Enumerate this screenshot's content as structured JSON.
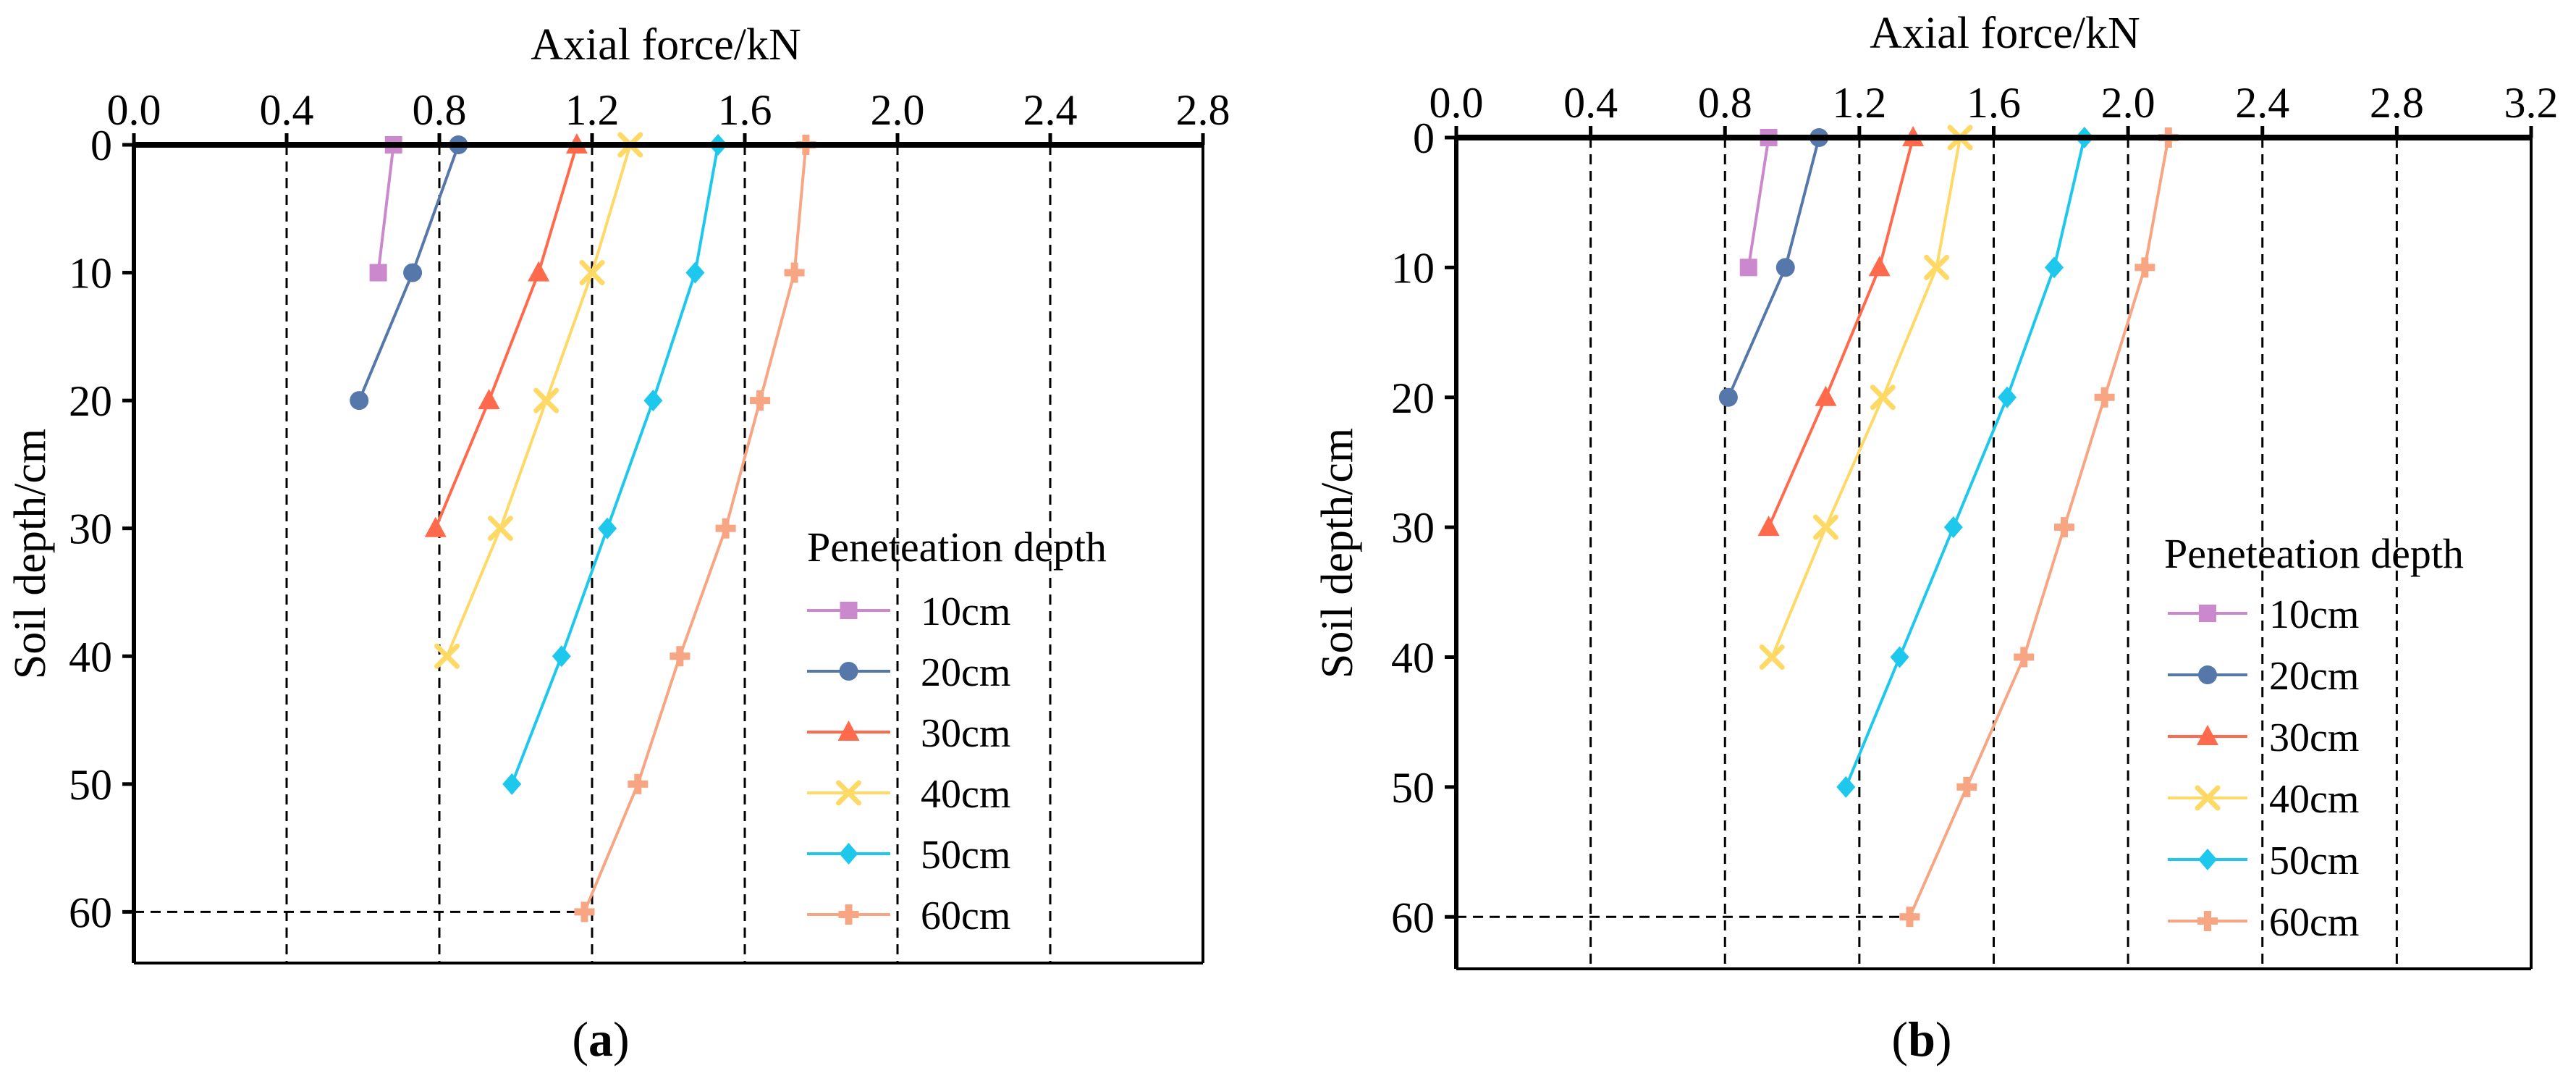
{
  "colors": {
    "10cm": "#cc88cc",
    "20cm": "#5577aa",
    "30cm": "#ff6a4d",
    "40cm": "#ffd966",
    "50cm": "#1ec8ec",
    "60cm": "#f7a582"
  },
  "chart_data": [
    {
      "type": "line",
      "panel_label": "a",
      "xlabel": "Axial force/kN",
      "ylabel": "Soil depth/cm",
      "xlim": [
        0,
        2.8
      ],
      "ylim": [
        0,
        64
      ],
      "x_axis_position": "top",
      "y_axis_inverted": true,
      "xticks": [
        "0.0",
        "0.4",
        "0.8",
        "1.2",
        "1.6",
        "2.0",
        "2.4",
        "2.8"
      ],
      "yticks": [
        "0",
        "10",
        "20",
        "30",
        "40",
        "50",
        "60"
      ],
      "vgrid": [
        0.4,
        0.8,
        1.2,
        1.6,
        2.0,
        2.4
      ],
      "grid": "dashed vertical",
      "reference_line": {
        "depth": 60,
        "x_end": 1.18
      },
      "legend_title": "Peneteation depth",
      "legend_position": "right",
      "series": [
        {
          "name": "10cm",
          "marker": "square",
          "depth": [
            0,
            10
          ],
          "force": [
            0.68,
            0.64
          ]
        },
        {
          "name": "20cm",
          "marker": "circle",
          "depth": [
            0,
            10,
            20
          ],
          "force": [
            0.85,
            0.73,
            0.59
          ]
        },
        {
          "name": "30cm",
          "marker": "triangle",
          "depth": [
            0,
            10,
            20,
            30
          ],
          "force": [
            1.16,
            1.06,
            0.93,
            0.79
          ]
        },
        {
          "name": "40cm",
          "marker": "x",
          "depth": [
            0,
            10,
            20,
            30,
            40
          ],
          "force": [
            1.3,
            1.2,
            1.08,
            0.96,
            0.82
          ]
        },
        {
          "name": "50cm",
          "marker": "diamond",
          "depth": [
            0,
            10,
            20,
            30,
            40,
            50
          ],
          "force": [
            1.53,
            1.47,
            1.36,
            1.24,
            1.12,
            0.99
          ]
        },
        {
          "name": "60cm",
          "marker": "plus",
          "depth": [
            0,
            10,
            20,
            30,
            40,
            50,
            60
          ],
          "force": [
            1.76,
            1.73,
            1.64,
            1.55,
            1.43,
            1.32,
            1.18
          ]
        }
      ]
    },
    {
      "type": "line",
      "panel_label": "b",
      "xlabel": "Axial force/kN",
      "ylabel": "Soil depth/cm",
      "xlim": [
        0,
        3.2
      ],
      "ylim": [
        0,
        64
      ],
      "x_axis_position": "top",
      "y_axis_inverted": true,
      "xticks": [
        "0.0",
        "0.4",
        "0.8",
        "1.2",
        "1.6",
        "2.0",
        "2.4",
        "2.8",
        "3.2"
      ],
      "yticks": [
        "0",
        "10",
        "20",
        "30",
        "40",
        "50",
        "60"
      ],
      "vgrid": [
        0.4,
        0.8,
        1.2,
        1.6,
        2.0,
        2.4,
        2.8
      ],
      "grid": "dashed vertical",
      "reference_line": {
        "depth": 60,
        "x_end": 1.35
      },
      "legend_title": "Peneteation depth",
      "legend_position": "right",
      "series": [
        {
          "name": "10cm",
          "marker": "square",
          "depth": [
            0,
            10
          ],
          "force": [
            0.93,
            0.87
          ]
        },
        {
          "name": "20cm",
          "marker": "circle",
          "depth": [
            0,
            10,
            20
          ],
          "force": [
            1.08,
            0.98,
            0.81
          ]
        },
        {
          "name": "30cm",
          "marker": "triangle",
          "depth": [
            0,
            10,
            20,
            30
          ],
          "force": [
            1.36,
            1.26,
            1.1,
            0.93
          ]
        },
        {
          "name": "40cm",
          "marker": "x",
          "depth": [
            0,
            10,
            20,
            30,
            40
          ],
          "force": [
            1.5,
            1.43,
            1.27,
            1.1,
            0.94
          ]
        },
        {
          "name": "50cm",
          "marker": "diamond",
          "depth": [
            0,
            10,
            20,
            30,
            40,
            50
          ],
          "force": [
            1.87,
            1.78,
            1.64,
            1.48,
            1.32,
            1.16
          ]
        },
        {
          "name": "60cm",
          "marker": "plus",
          "depth": [
            0,
            10,
            20,
            30,
            40,
            50,
            60
          ],
          "force": [
            2.12,
            2.05,
            1.93,
            1.81,
            1.69,
            1.52,
            1.35
          ]
        }
      ]
    }
  ]
}
